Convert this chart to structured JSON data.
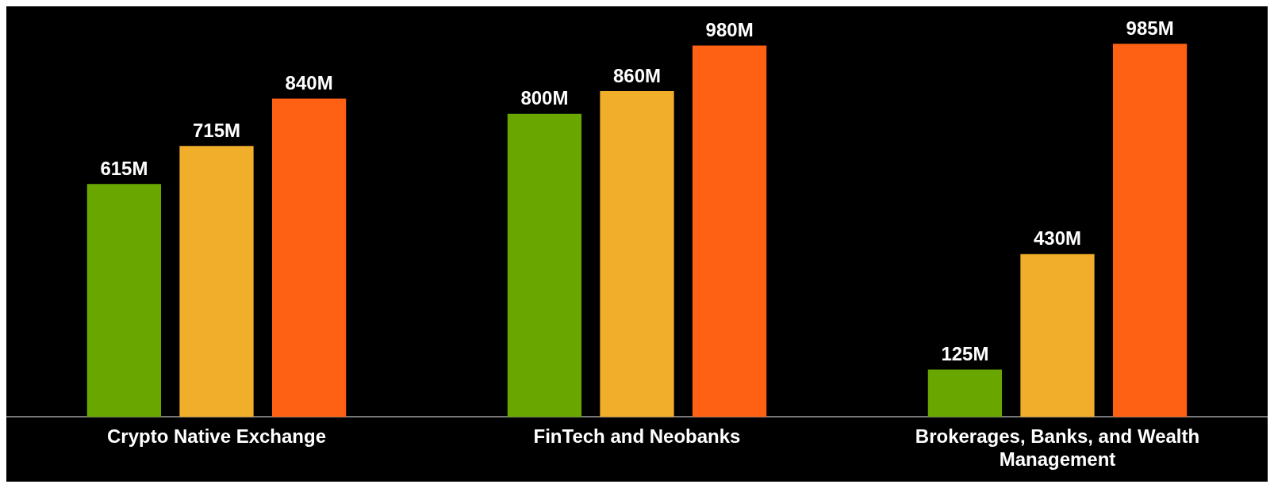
{
  "chart_data": {
    "type": "bar",
    "categories": [
      "Crypto Native Exchange",
      "FinTech and Neobanks",
      "Brokerages, Banks, and Wealth Management"
    ],
    "series": [
      {
        "color": "#6aa600",
        "values": [
          615,
          800,
          125
        ],
        "value_labels": [
          "615M",
          "800M",
          "125M"
        ]
      },
      {
        "color": "#f0ae2a",
        "values": [
          715,
          860,
          430
        ],
        "value_labels": [
          "715M",
          "860M",
          "430M"
        ]
      },
      {
        "color": "#ff6114",
        "values": [
          840,
          980,
          985
        ],
        "value_labels": [
          "840M",
          "980M",
          "985M"
        ]
      }
    ],
    "legend": false
  }
}
